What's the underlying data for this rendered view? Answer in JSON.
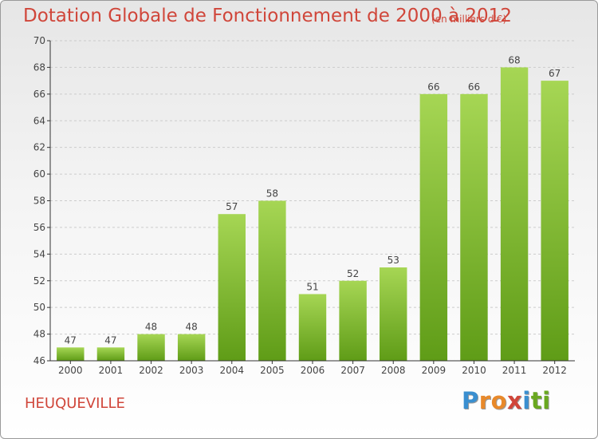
{
  "header": {
    "title": "Dotation Globale de Fonctionnement de 2000 à 2012",
    "subtitle": "(en milliers d'€)"
  },
  "footer": {
    "commune": "HEUQUEVILLE",
    "logo_letters": [
      "P",
      "r",
      "o",
      "x",
      "i",
      "t",
      "i"
    ],
    "logo_colors": [
      "#3a8fd0",
      "#e8892a",
      "#e8892a",
      "#d0463a",
      "#3a8fd0",
      "#6aa820",
      "#6aa820"
    ]
  },
  "chart_data": {
    "type": "bar",
    "title": "Dotation Globale de Fonctionnement de 2000 à 2012",
    "subtitle": "(en milliers d'€)",
    "categories": [
      "2000",
      "2001",
      "2002",
      "2003",
      "2004",
      "2005",
      "2006",
      "2007",
      "2008",
      "2009",
      "2010",
      "2011",
      "2012"
    ],
    "values": [
      47,
      47,
      48,
      48,
      57,
      58,
      51,
      52,
      53,
      66,
      66,
      68,
      67
    ],
    "ylim": [
      46,
      70
    ],
    "yticks": [
      46,
      48,
      50,
      52,
      54,
      56,
      58,
      60,
      62,
      64,
      66,
      68,
      70
    ],
    "grid": true,
    "legend": "none",
    "colors": {
      "bar_top": "#a6d654",
      "bar_bottom": "#5f9c17",
      "grid": "#cccccc",
      "axis": "#333333",
      "label": "#444444",
      "title": "#d0463a"
    }
  }
}
